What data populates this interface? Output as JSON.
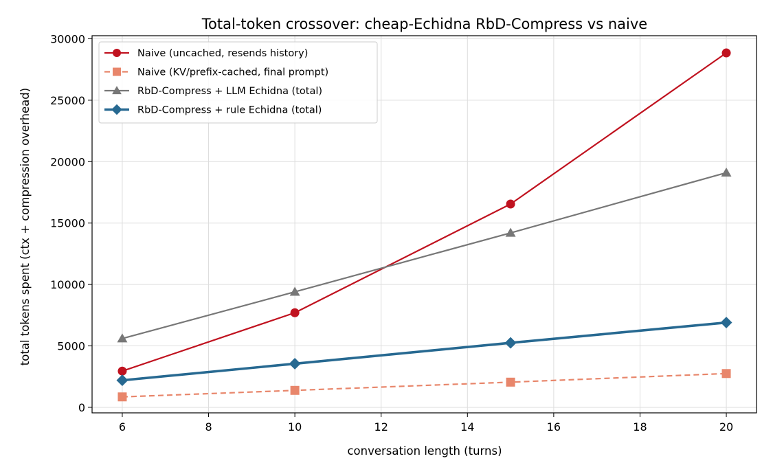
{
  "chart_data": {
    "type": "line",
    "title": "Total-token crossover: cheap-Echidna RbD-Compress vs naive",
    "xlabel": "conversation length (turns)",
    "ylabel": "total tokens spent (ctx + compression overhead)",
    "xlim": [
      5.3,
      20.7
    ],
    "ylim": [
      -450,
      30250
    ],
    "xticks": [
      6,
      8,
      10,
      12,
      14,
      16,
      18,
      20
    ],
    "yticks": [
      0,
      5000,
      10000,
      15000,
      20000,
      25000,
      30000
    ],
    "grid": true,
    "legend_position": "top-left",
    "x": [
      6,
      10,
      15,
      20
    ],
    "series": [
      {
        "name": "Naive (uncached, resends history)",
        "values": [
          2950,
          7700,
          16550,
          28850
        ],
        "color": "#c0121f",
        "marker": "circle",
        "dash": "solid",
        "width": 2.2
      },
      {
        "name": "Naive (KV/prefix-cached, final prompt)",
        "values": [
          850,
          1380,
          2050,
          2750
        ],
        "color": "#e8866b",
        "marker": "square",
        "dash": "dashed",
        "width": 2.2
      },
      {
        "name": "RbD-Compress + LLM Echidna (total)",
        "values": [
          5600,
          9400,
          14200,
          19100
        ],
        "color": "#777777",
        "marker": "triangle",
        "dash": "solid",
        "width": 2.2
      },
      {
        "name": "RbD-Compress + rule Echidna (total)",
        "values": [
          2200,
          3550,
          5250,
          6900
        ],
        "color": "#276991",
        "marker": "diamond",
        "dash": "solid",
        "width": 3.6
      }
    ]
  }
}
